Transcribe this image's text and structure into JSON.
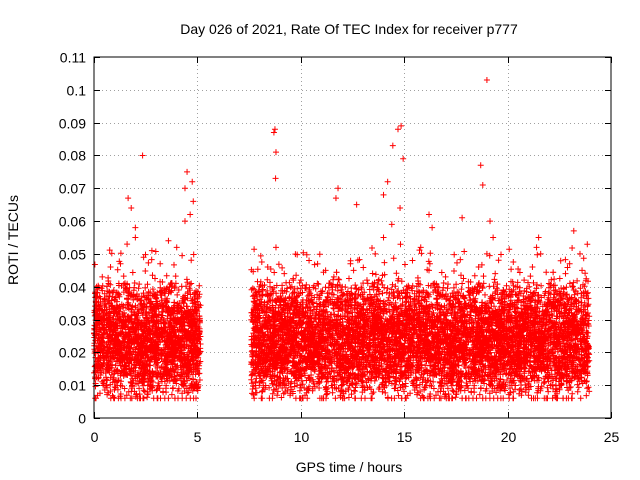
{
  "chart_data": {
    "type": "scatter",
    "title": "Day 026 of 2021, Rate Of TEC Index for receiver p777",
    "xlabel": "GPS time / hours",
    "ylabel": "ROTI / TECUs",
    "xlim": [
      0,
      25
    ],
    "ylim": [
      0,
      0.11
    ],
    "xticks": [
      0,
      5,
      10,
      15,
      20,
      25
    ],
    "xtick_labels": [
      "0",
      "5",
      "10",
      "15",
      "20",
      "25"
    ],
    "yticks": [
      0,
      0.01,
      0.02,
      0.03,
      0.04,
      0.05,
      0.06,
      0.07,
      0.08,
      0.09,
      0.1,
      0.11
    ],
    "ytick_labels": [
      "0",
      "0.01",
      "0.02",
      "0.03",
      "0.04",
      "0.05",
      "0.06",
      "0.07",
      "0.08",
      "0.09",
      "0.1",
      "0.11"
    ],
    "grid": true,
    "marker": "+",
    "marker_color": "#ff0000",
    "series": [
      {
        "name": "ROTI",
        "x": [
          0.1,
          0.3,
          0.5,
          0.7,
          0.9,
          1.1,
          1.3,
          1.5,
          1.7,
          1.9,
          2.1,
          2.3,
          2.5,
          2.7,
          2.9,
          3.1,
          3.3,
          3.5,
          3.7,
          3.9,
          4.1,
          4.3,
          4.5,
          4.7,
          4.9,
          0.2,
          0.6,
          1.0,
          1.4,
          1.8,
          2.2,
          2.6,
          3.0,
          3.4,
          3.8,
          4.2,
          4.6,
          5.0,
          0.4,
          0.8,
          1.2,
          1.6,
          2.0,
          2.4,
          2.8,
          3.2,
          3.6,
          4.0,
          4.4,
          4.8,
          1.65,
          2.35,
          4.4,
          4.5,
          4.65,
          4.75,
          1.8,
          2.0,
          7.7,
          7.9,
          8.1,
          8.3,
          8.5,
          8.7,
          8.9,
          9.1,
          9.3,
          9.5,
          9.7,
          9.9,
          10.1,
          10.3,
          10.5,
          10.7,
          10.9,
          11.1,
          11.3,
          11.5,
          11.7,
          11.9,
          12.1,
          12.3,
          12.5,
          12.7,
          12.9,
          13.1,
          13.3,
          13.5,
          13.7,
          13.9,
          14.1,
          14.3,
          14.5,
          14.7,
          14.9,
          7.8,
          8.2,
          8.6,
          9.0,
          9.4,
          9.8,
          10.2,
          10.6,
          11.0,
          11.4,
          11.8,
          12.2,
          12.6,
          13.0,
          13.4,
          13.8,
          14.2,
          14.6,
          8.0,
          8.4,
          8.8,
          9.2,
          9.6,
          10.0,
          10.4,
          10.8,
          11.2,
          11.6,
          12.0,
          12.4,
          12.8,
          13.2,
          13.6,
          14.0,
          14.4,
          14.8,
          8.7,
          8.75,
          8.8,
          8.78,
          11.7,
          11.8,
          12.7,
          14.0,
          14.2,
          14.45,
          14.7,
          14.85,
          14.95,
          15.1,
          15.3,
          15.5,
          15.7,
          15.9,
          16.1,
          16.3,
          16.5,
          16.7,
          16.9,
          17.1,
          17.3,
          17.5,
          17.7,
          17.9,
          18.1,
          18.3,
          18.5,
          18.7,
          18.9,
          19.1,
          19.3,
          19.5,
          19.7,
          19.9,
          15.2,
          15.6,
          16.0,
          16.4,
          16.8,
          17.2,
          17.6,
          18.0,
          18.4,
          18.8,
          19.2,
          19.6,
          15.4,
          15.8,
          16.2,
          16.6,
          17.0,
          17.4,
          17.8,
          18.2,
          18.6,
          19.0,
          19.4,
          19.8,
          16.2,
          16.35,
          17.8,
          18.7,
          18.8,
          19.0,
          19.3,
          19.15,
          20.1,
          20.3,
          20.5,
          20.7,
          20.9,
          21.1,
          21.3,
          21.5,
          21.7,
          21.9,
          22.1,
          22.3,
          22.5,
          22.7,
          22.9,
          23.1,
          23.3,
          23.5,
          23.7,
          23.9,
          20.2,
          20.6,
          21.0,
          21.4,
          21.8,
          22.2,
          22.6,
          23.0,
          23.4,
          23.8,
          20.4,
          20.8,
          21.2,
          21.6,
          22.0,
          22.4,
          22.8,
          23.2,
          23.6,
          21.4,
          21.5,
          23.0,
          23.2,
          23.5
        ],
        "y": [
          0.022,
          0.03,
          0.018,
          0.028,
          0.034,
          0.025,
          0.02,
          0.031,
          0.027,
          0.036,
          0.019,
          0.033,
          0.029,
          0.024,
          0.038,
          0.021,
          0.035,
          0.026,
          0.032,
          0.023,
          0.039,
          0.028,
          0.034,
          0.041,
          0.03,
          0.012,
          0.015,
          0.011,
          0.014,
          0.013,
          0.016,
          0.012,
          0.014,
          0.013,
          0.015,
          0.012,
          0.016,
          0.014,
          0.043,
          0.046,
          0.041,
          0.053,
          0.055,
          0.049,
          0.051,
          0.047,
          0.054,
          0.052,
          0.06,
          0.066,
          0.067,
          0.08,
          0.07,
          0.075,
          0.062,
          0.072,
          0.064,
          0.058,
          0.024,
          0.031,
          0.019,
          0.028,
          0.033,
          0.022,
          0.027,
          0.03,
          0.02,
          0.034,
          0.026,
          0.021,
          0.029,
          0.032,
          0.024,
          0.027,
          0.023,
          0.031,
          0.025,
          0.028,
          0.022,
          0.03,
          0.026,
          0.021,
          0.024,
          0.029,
          0.023,
          0.027,
          0.031,
          0.025,
          0.033,
          0.028,
          0.026,
          0.03,
          0.034,
          0.029,
          0.032,
          0.011,
          0.013,
          0.012,
          0.014,
          0.011,
          0.012,
          0.013,
          0.011,
          0.012,
          0.014,
          0.013,
          0.011,
          0.012,
          0.013,
          0.012,
          0.014,
          0.013,
          0.012,
          0.04,
          0.046,
          0.052,
          0.044,
          0.038,
          0.042,
          0.048,
          0.041,
          0.045,
          0.043,
          0.04,
          0.047,
          0.039,
          0.042,
          0.05,
          0.055,
          0.059,
          0.064,
          0.087,
          0.088,
          0.081,
          0.073,
          0.067,
          0.07,
          0.065,
          0.068,
          0.072,
          0.083,
          0.088,
          0.089,
          0.079,
          0.025,
          0.031,
          0.028,
          0.022,
          0.034,
          0.027,
          0.03,
          0.024,
          0.032,
          0.026,
          0.029,
          0.023,
          0.031,
          0.021,
          0.028,
          0.025,
          0.033,
          0.027,
          0.03,
          0.024,
          0.026,
          0.029,
          0.022,
          0.028,
          0.025,
          0.013,
          0.012,
          0.014,
          0.011,
          0.013,
          0.012,
          0.011,
          0.012,
          0.014,
          0.013,
          0.012,
          0.011,
          0.048,
          0.052,
          0.045,
          0.04,
          0.043,
          0.038,
          0.041,
          0.036,
          0.046,
          0.05,
          0.044,
          0.039,
          0.062,
          0.058,
          0.061,
          0.077,
          0.071,
          0.103,
          0.055,
          0.06,
          0.022,
          0.028,
          0.019,
          0.025,
          0.03,
          0.024,
          0.027,
          0.021,
          0.026,
          0.029,
          0.023,
          0.028,
          0.025,
          0.02,
          0.027,
          0.024,
          0.022,
          0.026,
          0.023,
          0.021,
          0.011,
          0.012,
          0.01,
          0.013,
          0.011,
          0.012,
          0.01,
          0.011,
          0.012,
          0.011,
          0.04,
          0.042,
          0.046,
          0.05,
          0.041,
          0.038,
          0.044,
          0.039,
          0.045,
          0.052,
          0.055,
          0.047,
          0.057,
          0.05
        ]
      }
    ]
  }
}
